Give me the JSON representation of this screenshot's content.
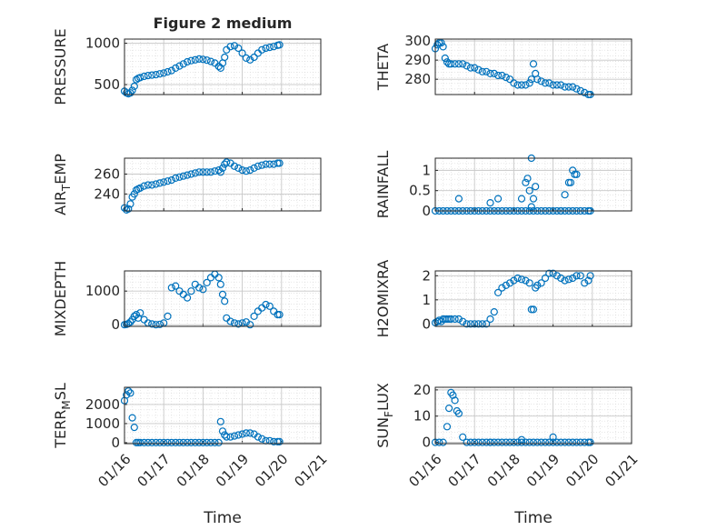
{
  "figure": {
    "title": "Figure 2 medium",
    "xlabel": "Time",
    "xticklabels": [
      "01/16",
      "01/17",
      "01/18",
      "01/19",
      "01/20",
      "01/21"
    ]
  },
  "chart_data": [
    {
      "type": "scatter",
      "ylabel": "PRESSURE",
      "ylabel_sub": null,
      "xlim": [
        0,
        5
      ],
      "ylim": [
        380,
        1050
      ],
      "yticks": [
        500,
        1000
      ],
      "color": "#0072BD",
      "grid": "on",
      "series": [
        {
          "x": [
            0,
            0.05,
            0.1,
            0.15,
            0.2,
            0.25,
            0.3,
            0.35,
            0.4,
            0.5,
            0.6,
            0.7,
            0.8,
            0.9,
            1.0,
            1.1,
            1.2,
            1.3,
            1.4,
            1.5,
            1.6,
            1.7,
            1.8,
            1.9,
            2.0,
            2.1,
            2.2,
            2.3,
            2.4,
            2.45,
            2.5,
            2.55,
            2.6,
            2.7,
            2.8,
            2.9,
            3.0,
            3.1,
            3.2,
            3.3,
            3.4,
            3.5,
            3.6,
            3.7,
            3.8,
            3.9,
            3.95
          ],
          "y": [
            420,
            400,
            390,
            400,
            430,
            480,
            560,
            575,
            585,
            600,
            610,
            615,
            620,
            630,
            640,
            655,
            670,
            700,
            725,
            750,
            775,
            790,
            800,
            810,
            805,
            795,
            780,
            760,
            720,
            700,
            760,
            830,
            920,
            960,
            970,
            940,
            880,
            820,
            800,
            830,
            880,
            920,
            940,
            950,
            960,
            975,
            980
          ]
        }
      ]
    },
    {
      "type": "scatter",
      "ylabel": "THETA",
      "ylabel_sub": null,
      "xlim": [
        0,
        5
      ],
      "ylim": [
        272,
        301
      ],
      "yticks": [
        280,
        290,
        300
      ],
      "color": "#0072BD",
      "grid": "on",
      "series": [
        {
          "x": [
            0,
            0.05,
            0.1,
            0.15,
            0.2,
            0.25,
            0.3,
            0.35,
            0.4,
            0.5,
            0.6,
            0.7,
            0.8,
            0.9,
            1.0,
            1.1,
            1.2,
            1.3,
            1.4,
            1.5,
            1.6,
            1.7,
            1.8,
            1.9,
            2.0,
            2.1,
            2.2,
            2.3,
            2.4,
            2.45,
            2.5,
            2.55,
            2.6,
            2.7,
            2.8,
            2.9,
            3.0,
            3.1,
            3.2,
            3.3,
            3.4,
            3.5,
            3.6,
            3.7,
            3.8,
            3.9,
            3.95
          ],
          "y": [
            296,
            298,
            299,
            299,
            297,
            291,
            289,
            288,
            288,
            288,
            288,
            288,
            287,
            286,
            286,
            285,
            284,
            284,
            283,
            283,
            282,
            282,
            281,
            280,
            278,
            277,
            277,
            277,
            278,
            280,
            288,
            283,
            280,
            279,
            278,
            278,
            277,
            277,
            277,
            276,
            276,
            276,
            275,
            274,
            273,
            272,
            272
          ]
        }
      ]
    },
    {
      "type": "scatter",
      "ylabel": "AIR",
      "ylabel_sub": "T",
      "ylabel_suffix": "EMP",
      "xlim": [
        0,
        5
      ],
      "ylim": [
        223,
        276
      ],
      "yticks": [
        240,
        260
      ],
      "color": "#0072BD",
      "grid": "on",
      "series": [
        {
          "x": [
            0,
            0.05,
            0.1,
            0.15,
            0.2,
            0.25,
            0.3,
            0.35,
            0.4,
            0.5,
            0.6,
            0.7,
            0.8,
            0.9,
            1.0,
            1.1,
            1.2,
            1.3,
            1.4,
            1.5,
            1.6,
            1.7,
            1.8,
            1.9,
            2.0,
            2.1,
            2.2,
            2.3,
            2.4,
            2.45,
            2.5,
            2.55,
            2.6,
            2.7,
            2.8,
            2.9,
            3.0,
            3.1,
            3.2,
            3.3,
            3.4,
            3.5,
            3.6,
            3.7,
            3.8,
            3.9,
            3.95
          ],
          "y": [
            226,
            224,
            225,
            230,
            237,
            240,
            244,
            245,
            246,
            248,
            249,
            249,
            250,
            251,
            252,
            253,
            254,
            256,
            257,
            258,
            259,
            260,
            261,
            262,
            262,
            262,
            262,
            263,
            264,
            262,
            266,
            270,
            272,
            271,
            268,
            266,
            264,
            263,
            264,
            266,
            268,
            269,
            270,
            270,
            270,
            271,
            271
          ]
        }
      ]
    },
    {
      "type": "scatter",
      "ylabel": "RAINFALL",
      "ylabel_sub": null,
      "xlim": [
        0,
        5
      ],
      "ylim": [
        0,
        1.3
      ],
      "yticks": [
        0,
        0.5,
        1
      ],
      "color": "#0072BD",
      "grid": "on",
      "series": [
        {
          "x": [
            0,
            0.1,
            0.2,
            0.3,
            0.4,
            0.5,
            0.6,
            0.7,
            0.8,
            0.9,
            1.0,
            1.1,
            1.2,
            1.3,
            1.4,
            1.5,
            1.6,
            1.7,
            1.8,
            1.9,
            2.0,
            2.1,
            2.2,
            2.3,
            2.4,
            2.5,
            2.6,
            2.7,
            2.8,
            2.9,
            3.0,
            3.1,
            3.2,
            3.3,
            3.4,
            3.5,
            3.6,
            3.7,
            3.8,
            3.9,
            3.95,
            0.6,
            1.4,
            1.6,
            2.2,
            2.3,
            2.35,
            2.4,
            2.45,
            2.5,
            2.55,
            2.45,
            3.3,
            3.4,
            3.45,
            3.5,
            3.55,
            3.6,
            3.2
          ],
          "y": [
            0,
            0,
            0,
            0,
            0,
            0,
            0,
            0,
            0,
            0,
            0,
            0,
            0,
            0,
            0,
            0,
            0,
            0,
            0,
            0,
            0,
            0,
            0,
            0,
            0,
            0,
            0,
            0,
            0,
            0,
            0,
            0,
            0,
            0,
            0,
            0,
            0,
            0,
            0,
            0,
            0,
            0.3,
            0.2,
            0.3,
            0.3,
            0.7,
            0.8,
            0.5,
            1.3,
            0.3,
            0.6,
            0.1,
            0.4,
            0.7,
            0.7,
            1.0,
            0.9,
            0.9,
            0
          ]
        }
      ]
    },
    {
      "type": "scatter",
      "ylabel": "MIXDEPTH",
      "ylabel_sub": null,
      "xlim": [
        0,
        5
      ],
      "ylim": [
        -50,
        1600
      ],
      "yticks": [
        0,
        1000
      ],
      "color": "#0072BD",
      "grid": "on",
      "series": [
        {
          "x": [
            0,
            0.05,
            0.1,
            0.15,
            0.2,
            0.25,
            0.3,
            0.35,
            0.4,
            0.5,
            0.6,
            0.7,
            0.8,
            0.9,
            1.0,
            1.1,
            1.2,
            1.3,
            1.4,
            1.5,
            1.6,
            1.7,
            1.8,
            1.9,
            2.0,
            2.1,
            2.2,
            2.3,
            2.4,
            2.45,
            2.5,
            2.55,
            2.6,
            2.7,
            2.8,
            2.9,
            3.0,
            3.1,
            3.2,
            3.3,
            3.4,
            3.5,
            3.6,
            3.7,
            3.8,
            3.9,
            3.95
          ],
          "y": [
            0,
            10,
            30,
            80,
            150,
            250,
            300,
            200,
            350,
            150,
            50,
            20,
            0,
            10,
            50,
            250,
            1100,
            1150,
            1000,
            900,
            800,
            1000,
            1200,
            1100,
            1050,
            1250,
            1400,
            1500,
            1400,
            1200,
            900,
            700,
            200,
            100,
            50,
            20,
            50,
            80,
            0,
            250,
            400,
            500,
            600,
            550,
            400,
            300,
            300
          ]
        }
      ]
    },
    {
      "type": "scatter",
      "ylabel": "H2OMIXRA",
      "ylabel_sub": null,
      "xlim": [
        0,
        5
      ],
      "ylim": [
        -0.1,
        2.2
      ],
      "yticks": [
        0,
        1,
        2
      ],
      "color": "#0072BD",
      "grid": "on",
      "series": [
        {
          "x": [
            0,
            0.05,
            0.1,
            0.15,
            0.2,
            0.25,
            0.3,
            0.35,
            0.4,
            0.5,
            0.6,
            0.7,
            0.8,
            0.9,
            1.0,
            1.1,
            1.2,
            1.3,
            1.4,
            1.5,
            1.6,
            1.7,
            1.8,
            1.9,
            2.0,
            2.1,
            2.2,
            2.3,
            2.4,
            2.45,
            2.5,
            2.55,
            2.6,
            2.7,
            2.8,
            2.9,
            3.0,
            3.1,
            3.2,
            3.3,
            3.4,
            3.5,
            3.6,
            3.7,
            3.8,
            3.9,
            3.95
          ],
          "y": [
            0.05,
            0.1,
            0.15,
            0.1,
            0.2,
            0.2,
            0.2,
            0.2,
            0.2,
            0.2,
            0.2,
            0.1,
            0,
            0,
            0,
            0,
            0,
            0,
            0.2,
            0.5,
            1.3,
            1.5,
            1.6,
            1.7,
            1.8,
            1.9,
            1.85,
            1.8,
            1.7,
            0.6,
            0.6,
            1.5,
            1.6,
            1.7,
            1.9,
            2.1,
            2.1,
            2.0,
            1.9,
            1.8,
            1.85,
            1.9,
            2.0,
            2.0,
            1.7,
            1.8,
            2.0
          ]
        }
      ]
    },
    {
      "type": "scatter",
      "ylabel": "TERR",
      "ylabel_sub": "M",
      "ylabel_suffix": "SL",
      "xlim": [
        0,
        5
      ],
      "ylim": [
        -50,
        2900
      ],
      "yticks": [
        0,
        1000,
        2000
      ],
      "color": "#0072BD",
      "grid": "on",
      "series": [
        {
          "x": [
            0,
            0.05,
            0.1,
            0.15,
            0.2,
            0.25,
            0.3,
            0.35,
            0.4,
            0.5,
            0.6,
            0.7,
            0.8,
            0.9,
            1.0,
            1.1,
            1.2,
            1.3,
            1.4,
            1.5,
            1.6,
            1.7,
            1.8,
            1.9,
            2.0,
            2.1,
            2.2,
            2.3,
            2.4,
            2.45,
            2.5,
            2.55,
            2.6,
            2.7,
            2.8,
            2.9,
            3.0,
            3.1,
            3.2,
            3.3,
            3.4,
            3.5,
            3.6,
            3.7,
            3.8,
            3.9,
            3.95
          ],
          "y": [
            2200,
            2500,
            2700,
            2600,
            1300,
            800,
            0,
            0,
            0,
            0,
            0,
            0,
            0,
            0,
            0,
            0,
            0,
            0,
            0,
            0,
            0,
            0,
            0,
            0,
            0,
            0,
            0,
            0,
            0,
            1100,
            600,
            400,
            300,
            300,
            350,
            400,
            450,
            500,
            500,
            450,
            300,
            200,
            100,
            100,
            50,
            50,
            50
          ]
        }
      ]
    },
    {
      "type": "scatter",
      "ylabel": "SUN",
      "ylabel_sub": "F",
      "ylabel_suffix": "LUX",
      "xlim": [
        0,
        5
      ],
      "ylim": [
        -0.5,
        21
      ],
      "yticks": [
        0,
        10,
        20
      ],
      "color": "#0072BD",
      "grid": "on",
      "series": [
        {
          "x": [
            0,
            0.1,
            0.2,
            0.3,
            0.35,
            0.4,
            0.45,
            0.5,
            0.55,
            0.6,
            0.7,
            0.8,
            0.9,
            1.0,
            1.1,
            1.2,
            1.3,
            1.4,
            1.5,
            1.6,
            1.7,
            1.8,
            1.9,
            2.0,
            2.1,
            2.2,
            2.3,
            2.4,
            2.5,
            2.6,
            2.7,
            2.8,
            2.9,
            3.0,
            3.1,
            3.2,
            3.3,
            3.4,
            3.5,
            3.6,
            3.7,
            3.8,
            3.9,
            3.95,
            1.4,
            2.2,
            3.0
          ],
          "y": [
            0,
            0,
            0,
            6,
            13,
            19,
            18,
            16,
            12,
            11,
            2,
            0,
            0,
            0,
            0,
            0,
            0,
            0,
            0,
            0,
            0,
            0,
            0,
            0,
            0,
            0,
            0,
            0,
            0,
            0,
            0,
            0,
            0,
            0,
            0,
            0,
            0,
            0,
            0,
            0,
            0,
            0,
            0,
            0,
            0,
            1,
            2
          ]
        }
      ]
    }
  ]
}
